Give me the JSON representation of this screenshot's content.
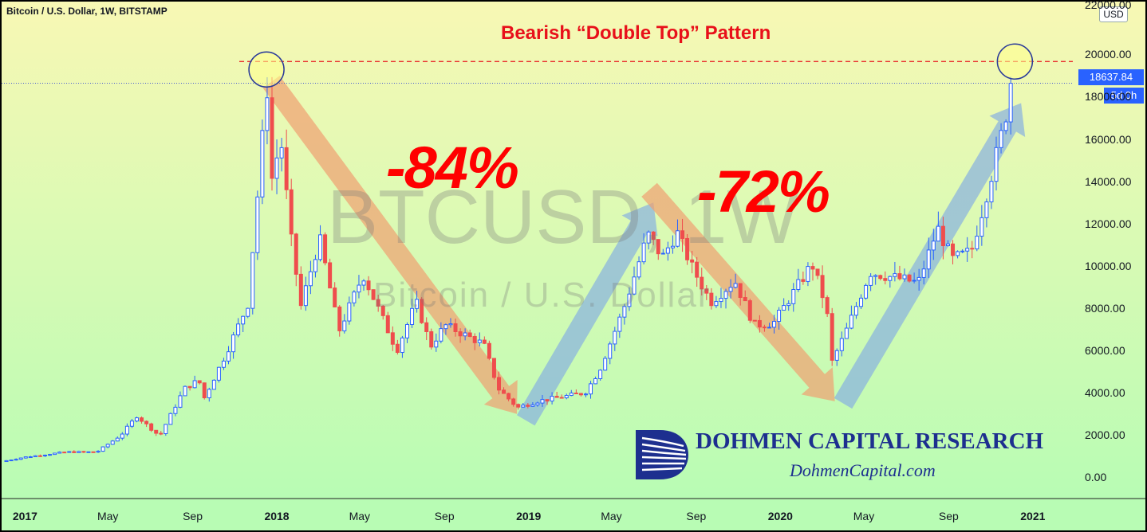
{
  "header": {
    "symbol_label": "Bitcoin / U.S. Dollar, 1W, BITSTAMP",
    "currency_button": "USD"
  },
  "annotations": {
    "pattern_title": "Bearish “Double Top” Pattern",
    "drop1": "-84%",
    "drop2": "-72%",
    "watermark_main": "BTCUSD, 1W",
    "watermark_sub": "Bitcoin / U.S. Dollar"
  },
  "branding": {
    "name": "DOHMEN CAPITAL RESEARCH",
    "website": "DohmenCapital.com"
  },
  "price_label": {
    "last_price": "18637.84",
    "countdown": "5d 0h"
  },
  "colors": {
    "up": "#2962ff",
    "down": "#ef4d4d",
    "annotation_red": "#e8101a",
    "arrow_down": "#f0a070",
    "arrow_up": "#88b0e0",
    "background_top": "#f8f8b4",
    "background_bottom": "#b8fcb4"
  },
  "chart_data": {
    "type": "candlestick",
    "title": "Bitcoin / U.S. Dollar, 1W, BITSTAMP",
    "ylim": [
      -1000,
      22500
    ],
    "y_ticks": [
      "22000.00",
      "20000.00",
      "18000.00",
      "16000.00",
      "14000.00",
      "12000.00",
      "10000.00",
      "8000.00",
      "6000.00",
      "4000.00",
      "2000.00",
      "0.00"
    ],
    "x_ticks": [
      {
        "label": "2017",
        "bold": true
      },
      {
        "label": "May",
        "bold": false
      },
      {
        "label": "Sep",
        "bold": false
      },
      {
        "label": "2018",
        "bold": true
      },
      {
        "label": "May",
        "bold": false
      },
      {
        "label": "Sep",
        "bold": false
      },
      {
        "label": "2019",
        "bold": true
      },
      {
        "label": "May",
        "bold": false
      },
      {
        "label": "Sep",
        "bold": false
      },
      {
        "label": "2020",
        "bold": true
      },
      {
        "label": "May",
        "bold": false
      },
      {
        "label": "Sep",
        "bold": false
      },
      {
        "label": "2021",
        "bold": true
      }
    ],
    "x_tick_dates": [
      "2017-01-01",
      "2017-05-01",
      "2017-09-01",
      "2018-01-01",
      "2018-05-01",
      "2018-09-01",
      "2019-01-01",
      "2019-05-01",
      "2019-09-01",
      "2020-01-01",
      "2020-05-01",
      "2020-09-01",
      "2021-01-01"
    ],
    "x_range": [
      "2016-11-28",
      "2021-02-28"
    ],
    "resistance_line": 19666,
    "last_price": 18637.84,
    "close_path": [
      {
        "date": "2016-11-28",
        "price": 750
      },
      {
        "date": "2017-01-01",
        "price": 960
      },
      {
        "date": "2017-03-01",
        "price": 1200
      },
      {
        "date": "2017-04-15",
        "price": 1200
      },
      {
        "date": "2017-05-20",
        "price": 2000
      },
      {
        "date": "2017-06-12",
        "price": 2900
      },
      {
        "date": "2017-07-15",
        "price": 1950
      },
      {
        "date": "2017-08-20",
        "price": 4200
      },
      {
        "date": "2017-09-10",
        "price": 4600
      },
      {
        "date": "2017-09-17",
        "price": 3700
      },
      {
        "date": "2017-10-20",
        "price": 5900
      },
      {
        "date": "2017-11-20",
        "price": 8200
      },
      {
        "date": "2017-12-10",
        "price": 15500
      },
      {
        "date": "2017-12-17",
        "price": 19100
      },
      {
        "date": "2017-12-24",
        "price": 14000
      },
      {
        "date": "2018-01-07",
        "price": 16000
      },
      {
        "date": "2018-01-21",
        "price": 11400
      },
      {
        "date": "2018-02-05",
        "price": 8100
      },
      {
        "date": "2018-03-04",
        "price": 11300
      },
      {
        "date": "2018-04-01",
        "price": 6900
      },
      {
        "date": "2018-05-06",
        "price": 9600
      },
      {
        "date": "2018-06-24",
        "price": 6000
      },
      {
        "date": "2018-07-22",
        "price": 8300
      },
      {
        "date": "2018-08-12",
        "price": 6200
      },
      {
        "date": "2018-09-02",
        "price": 7200
      },
      {
        "date": "2018-10-28",
        "price": 6300
      },
      {
        "date": "2018-11-18",
        "price": 4200
      },
      {
        "date": "2018-12-16",
        "price": 3300
      },
      {
        "date": "2019-01-13",
        "price": 3600
      },
      {
        "date": "2019-03-24",
        "price": 4000
      },
      {
        "date": "2019-04-14",
        "price": 5100
      },
      {
        "date": "2019-05-19",
        "price": 8000
      },
      {
        "date": "2019-06-23",
        "price": 11500
      },
      {
        "date": "2019-07-14",
        "price": 10400
      },
      {
        "date": "2019-08-04",
        "price": 11600
      },
      {
        "date": "2019-08-25",
        "price": 10000
      },
      {
        "date": "2019-09-22",
        "price": 8300
      },
      {
        "date": "2019-10-27",
        "price": 9300
      },
      {
        "date": "2019-11-24",
        "price": 7200
      },
      {
        "date": "2019-12-22",
        "price": 7300
      },
      {
        "date": "2020-02-16",
        "price": 10100
      },
      {
        "date": "2020-03-08",
        "price": 8000
      },
      {
        "date": "2020-03-15",
        "price": 5400
      },
      {
        "date": "2020-04-05",
        "price": 6900
      },
      {
        "date": "2020-05-10",
        "price": 9700
      },
      {
        "date": "2020-07-19",
        "price": 9200
      },
      {
        "date": "2020-08-16",
        "price": 11800
      },
      {
        "date": "2020-09-06",
        "price": 10300
      },
      {
        "date": "2020-10-04",
        "price": 10700
      },
      {
        "date": "2020-10-25",
        "price": 13300
      },
      {
        "date": "2020-11-15",
        "price": 16000
      },
      {
        "date": "2020-11-29",
        "price": 18100
      },
      {
        "date": "2020-12-06",
        "price": 18637.84
      }
    ]
  }
}
